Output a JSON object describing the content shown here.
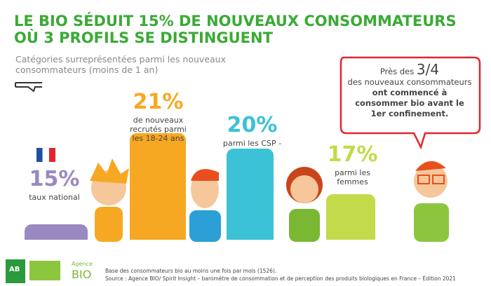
{
  "chart_data": {
    "type": "bar",
    "title": "LE BIO SÉDUIT 15% DE NOUVEAUX CONSOMMATEURS OÙ 3 PROFILS SE DISTINGUENT",
    "subtitle": "Catégories surreprésentées parmi les nouveaux consommateurs (moins de 1 an)",
    "categories": [
      "taux national",
      "de nouveaux recrutés parmi les 18-24 ans",
      "parmi les CSP -",
      "parmi les femmes"
    ],
    "values": [
      15,
      21,
      20,
      17
    ],
    "value_labels": [
      "15%",
      "21%",
      "20%",
      "17%"
    ],
    "colors": [
      "#9a89c0",
      "#f7a823",
      "#3cc2d6",
      "#c3da4b"
    ],
    "ylim": [
      14,
      22
    ],
    "annotation": [
      "Près des",
      "3/4",
      "des nouveaux consommateurs",
      "ont commencé à consommer bio avant le 1er confinement."
    ],
    "footnotes": [
      "Base des consommateurs bio au moins une fois par mois (1526).",
      "Source : Agence BIO/ Spirit Insight – baromètre de consommation et de perception des produits biologiques en France – Édition 2021"
    ],
    "logos": [
      "AB",
      "Agence",
      "BIO"
    ]
  }
}
